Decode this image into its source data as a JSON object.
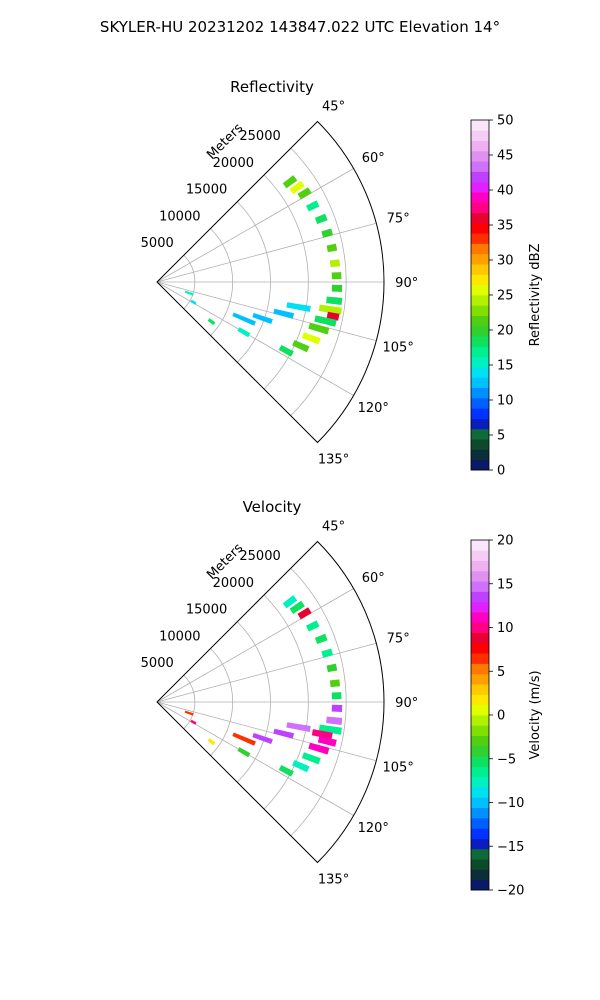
{
  "suptitle": "SKYLER-HU  20231202  143847.022 UTC Elevation 14°",
  "chart_data": [
    {
      "type": "polar-sector",
      "title": "Reflectivity",
      "radial_label": "Meters",
      "r_ticks": [
        5000,
        10000,
        15000,
        20000,
        25000
      ],
      "r_tick_labels": [
        "5000",
        "10000",
        "15000",
        "20000",
        "25000"
      ],
      "theta_ticks": [
        45,
        60,
        75,
        90,
        105,
        120,
        135
      ],
      "theta_tick_labels": [
        "45°",
        "60°",
        "75°",
        "90°",
        "105°",
        "120°",
        "135°"
      ],
      "theta_range": [
        45,
        135
      ],
      "r_max": 30000,
      "grid": true,
      "colorbar": {
        "label": "Reflectivity dBZ",
        "min": 0,
        "max": 50,
        "ticks": [
          0,
          5,
          10,
          15,
          20,
          25,
          30,
          35,
          40,
          45,
          50
        ],
        "tick_labels": [
          "0",
          "5",
          "10",
          "15",
          "20",
          "25",
          "30",
          "35",
          "40",
          "45",
          "50"
        ],
        "colors": [
          "#0a1a66",
          "#0b2e3a",
          "#0d4a2a",
          "#0f6a3a",
          "#0a1dbf",
          "#0033ff",
          "#0060ff",
          "#0090ff",
          "#00c0ff",
          "#00e0f0",
          "#00f0c0",
          "#00f090",
          "#10e060",
          "#30d030",
          "#50d010",
          "#80e000",
          "#b0f000",
          "#e0ff00",
          "#ffe800",
          "#ffc800",
          "#ffa000",
          "#ff7800",
          "#ff3000",
          "#ff0000",
          "#e80030",
          "#ff0080",
          "#ff00c0",
          "#e020ff",
          "#c040ff",
          "#d070ff",
          "#e090f0",
          "#eeb0f0",
          "#f4ccf4",
          "#fae6fa"
        ]
      },
      "echoes": [
        {
          "theta": 53,
          "r": [
            21200,
            22800
          ],
          "value": 21
        },
        {
          "theta": 56,
          "r": [
            21500,
            23200
          ],
          "value": 25
        },
        {
          "theta": 59,
          "r": [
            22000,
            23500
          ],
          "value": 22
        },
        {
          "theta": 64,
          "r": [
            22200,
            23600
          ],
          "value": 17
        },
        {
          "theta": 69,
          "r": [
            22600,
            23900
          ],
          "value": 19
        },
        {
          "theta": 74,
          "r": [
            22800,
            24000
          ],
          "value": 20
        },
        {
          "theta": 79,
          "r": [
            23000,
            24100
          ],
          "value": 22
        },
        {
          "theta": 84,
          "r": [
            23100,
            24200
          ],
          "value": 24
        },
        {
          "theta": 88,
          "r": [
            23200,
            24300
          ],
          "value": 22
        },
        {
          "theta": 92,
          "r": [
            23200,
            24400
          ],
          "value": 20
        },
        {
          "theta": 96,
          "r": [
            22600,
            24500
          ],
          "value": 19
        },
        {
          "theta": 99,
          "r": [
            21800,
            24600
          ],
          "value": 24
        },
        {
          "theta": 101,
          "r": [
            23000,
            24400
          ],
          "value": 36
        },
        {
          "theta": 103,
          "r": [
            21500,
            24200
          ],
          "value": 19
        },
        {
          "theta": 106,
          "r": [
            21000,
            23500
          ],
          "value": 21
        },
        {
          "theta": 110,
          "r": [
            20600,
            22800
          ],
          "value": 25
        },
        {
          "theta": 114,
          "r": [
            19800,
            21800
          ],
          "value": 22
        },
        {
          "theta": 118,
          "r": [
            18500,
            20200
          ],
          "value": 19
        },
        {
          "theta": 100,
          "r": [
            17500,
            20500
          ],
          "value": 14
        },
        {
          "theta": 104,
          "r": [
            16000,
            18500
          ],
          "value": 13
        },
        {
          "theta": 109,
          "r": [
            13500,
            16000
          ],
          "value": 12
        },
        {
          "theta": 113,
          "r": [
            11000,
            14000
          ],
          "value": 13
        },
        {
          "theta": 120,
          "r": [
            12500,
            14000
          ],
          "value": 15
        },
        {
          "theta": 109,
          "r": [
            4000,
            5000
          ],
          "value": 16
        },
        {
          "theta": 119,
          "r": [
            5200,
            5800
          ],
          "value": 14
        },
        {
          "theta": 126,
          "r": [
            8500,
            9300
          ],
          "value": 18
        }
      ]
    },
    {
      "type": "polar-sector",
      "title": "Velocity",
      "radial_label": "Meters",
      "r_ticks": [
        5000,
        10000,
        15000,
        20000,
        25000
      ],
      "r_tick_labels": [
        "5000",
        "10000",
        "15000",
        "20000",
        "25000"
      ],
      "theta_ticks": [
        45,
        60,
        75,
        90,
        105,
        120,
        135
      ],
      "theta_tick_labels": [
        "45°",
        "60°",
        "75°",
        "90°",
        "105°",
        "120°",
        "135°"
      ],
      "theta_range": [
        45,
        135
      ],
      "r_max": 30000,
      "grid": true,
      "colorbar": {
        "label": "Velocity (m/s)",
        "min": -20,
        "max": 20,
        "ticks": [
          -20,
          -15,
          -10,
          -5,
          0,
          5,
          10,
          15,
          20
        ],
        "tick_labels": [
          "−20",
          "−15",
          "−10",
          "−5",
          "0",
          "5",
          "10",
          "15",
          "20"
        ],
        "colors": [
          "#0a1a66",
          "#0b2e3a",
          "#0d4a2a",
          "#0f6a3a",
          "#0a1dbf",
          "#0033ff",
          "#0060ff",
          "#0090ff",
          "#00c0ff",
          "#00e0f0",
          "#00f0c0",
          "#00f090",
          "#10e060",
          "#30d030",
          "#50d010",
          "#80e000",
          "#b0f000",
          "#e0ff00",
          "#ffe800",
          "#ffc800",
          "#ffa000",
          "#ff7800",
          "#ff3000",
          "#ff0000",
          "#e80030",
          "#ff0080",
          "#ff00c0",
          "#e020ff",
          "#c040ff",
          "#d070ff",
          "#e090f0",
          "#eeb0f0",
          "#f4ccf4",
          "#fae6fa"
        ]
      },
      "echoes": [
        {
          "theta": 53,
          "r": [
            21200,
            22800
          ],
          "value": -8
        },
        {
          "theta": 56,
          "r": [
            21500,
            23200
          ],
          "value": -5
        },
        {
          "theta": 59,
          "r": [
            22000,
            23500
          ],
          "value": 9
        },
        {
          "theta": 64,
          "r": [
            22200,
            23600
          ],
          "value": -7
        },
        {
          "theta": 69,
          "r": [
            22600,
            23900
          ],
          "value": -5
        },
        {
          "theta": 74,
          "r": [
            22800,
            24000
          ],
          "value": -6
        },
        {
          "theta": 79,
          "r": [
            23000,
            24100
          ],
          "value": -4
        },
        {
          "theta": 84,
          "r": [
            23100,
            24200
          ],
          "value": -3
        },
        {
          "theta": 88,
          "r": [
            23200,
            24300
          ],
          "value": -5
        },
        {
          "theta": 92,
          "r": [
            23200,
            24400
          ],
          "value": 14
        },
        {
          "theta": 96,
          "r": [
            22600,
            24500
          ],
          "value": 15
        },
        {
          "theta": 99,
          "r": [
            21800,
            24600
          ],
          "value": -6
        },
        {
          "theta": 101,
          "r": [
            21000,
            23500
          ],
          "value": 10
        },
        {
          "theta": 103,
          "r": [
            22000,
            24200
          ],
          "value": 11
        },
        {
          "theta": 106,
          "r": [
            21000,
            23500
          ],
          "value": 11
        },
        {
          "theta": 110,
          "r": [
            20600,
            22800
          ],
          "value": -7
        },
        {
          "theta": 114,
          "r": [
            19800,
            21800
          ],
          "value": -8
        },
        {
          "theta": 118,
          "r": [
            18500,
            20200
          ],
          "value": -5
        },
        {
          "theta": 100,
          "r": [
            17500,
            20500
          ],
          "value": 15
        },
        {
          "theta": 104,
          "r": [
            16000,
            18500
          ],
          "value": 14
        },
        {
          "theta": 109,
          "r": [
            13500,
            16000
          ],
          "value": 13
        },
        {
          "theta": 113,
          "r": [
            11000,
            14000
          ],
          "value": 6
        },
        {
          "theta": 120,
          "r": [
            12500,
            14000
          ],
          "value": -4
        },
        {
          "theta": 109,
          "r": [
            4000,
            5000
          ],
          "value": 7
        },
        {
          "theta": 119,
          "r": [
            5200,
            5800
          ],
          "value": 10
        },
        {
          "theta": 126,
          "r": [
            8500,
            9300
          ],
          "value": 2
        }
      ]
    }
  ]
}
